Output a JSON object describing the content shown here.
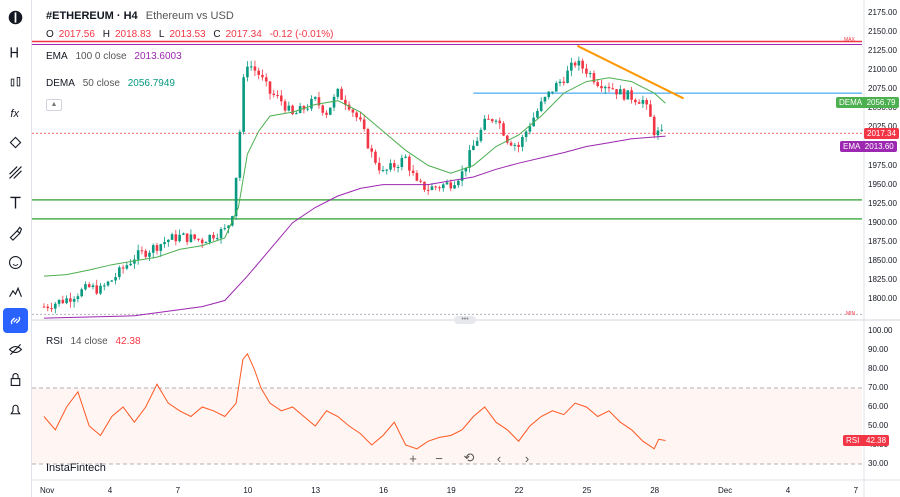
{
  "symbol": "#ETHEREUM · H4",
  "pair_desc": "Ethereum vs USD",
  "ohlc": {
    "o_label": "O",
    "o": "2017.56",
    "h_label": "H",
    "h": "2018.83",
    "l_label": "L",
    "l": "2013.53",
    "c_label": "C",
    "c": "2017.34",
    "change": "-0.12 (-0.01%)"
  },
  "ema": {
    "name": "EMA",
    "params": "100 0 close",
    "value": "2013.6003"
  },
  "dema": {
    "name": "DEMA",
    "params": "50 close",
    "value": "2056.7949"
  },
  "rsi": {
    "name": "RSI",
    "params": "14 close",
    "value": "42.38"
  },
  "price_axis": [
    "2175.00",
    "2150.00",
    "2125.00",
    "2100.00",
    "2075.00",
    "2050.00",
    "2025.00",
    "2000.00",
    "1975.00",
    "1950.00",
    "1925.00",
    "1900.00",
    "1875.00",
    "1850.00",
    "1825.00",
    "1800.00"
  ],
  "rsi_axis": [
    "100.00",
    "90.00",
    "80.00",
    "70.00",
    "60.00",
    "50.00",
    "40.00",
    "30.00"
  ],
  "x_labels": [
    "Nov",
    "4",
    "7",
    "10",
    "13",
    "16",
    "19",
    "22",
    "25",
    "28",
    "Dec",
    "4",
    "7"
  ],
  "tags": {
    "dema_label": "DEMA",
    "dema_value": "2056.79",
    "price": "2017.34",
    "ema_label": "EMA",
    "ema_value": "2013.60",
    "rsi_label": "RSI",
    "rsi_value": "42.38"
  },
  "max_label": "MAX",
  "min_label": "MIN",
  "watermark": "InstaFintech",
  "colors": {
    "up": "#089981",
    "down": "#f23645",
    "ema": "#9c27b0",
    "dema": "#4caf50",
    "rsi": "#ff5722",
    "trend": "#ff9800",
    "support": "#4caf50",
    "resistance": "#f23645",
    "hline_blue": "#2196f3",
    "accent": "#2962ff"
  },
  "sidebar_icons": [
    "logo-icon",
    "text-h-icon",
    "candles-icon",
    "function-icon",
    "pattern-icon",
    "lines-icon",
    "text-tool-icon",
    "brush-icon",
    "emoji-icon",
    "chart-type-icon",
    "link-icon",
    "hide-icon",
    "lock-icon",
    "alert-icon"
  ],
  "chart_data": {
    "type": "candlestick",
    "title": "#ETHEREUM · H4",
    "x_ticks": [
      "Nov",
      "4",
      "7",
      "10",
      "13",
      "16",
      "19",
      "22",
      "25",
      "28",
      "Dec",
      "4",
      "7"
    ],
    "ylim": [
      1780,
      2180
    ],
    "rsi_ylim": [
      25,
      100
    ],
    "price_levels": {
      "support_1": 1930,
      "support_2": 1905,
      "resistance": 2135,
      "blue_level": 2070,
      "last_price": 2017.34
    },
    "trendline": {
      "from": [
        24.6,
        2132
      ],
      "to": [
        29.3,
        2063
      ]
    },
    "close_path": [
      [
        1,
        1790
      ],
      [
        1.5,
        1795
      ],
      [
        2,
        1800
      ],
      [
        2.5,
        1808
      ],
      [
        3,
        1815
      ],
      [
        3.5,
        1812
      ],
      [
        4,
        1825
      ],
      [
        4.5,
        1840
      ],
      [
        5,
        1855
      ],
      [
        5.5,
        1862
      ],
      [
        6,
        1870
      ],
      [
        6.5,
        1878
      ],
      [
        7,
        1882
      ],
      [
        7.5,
        1880
      ],
      [
        8,
        1877
      ],
      [
        8.5,
        1885
      ],
      [
        9,
        1890
      ],
      [
        9.3,
        1905
      ],
      [
        9.6,
        1990
      ],
      [
        9.8,
        2080
      ],
      [
        10,
        2110
      ],
      [
        10.5,
        2095
      ],
      [
        11,
        2070
      ],
      [
        11.5,
        2060
      ],
      [
        12,
        2040
      ],
      [
        12.5,
        2050
      ],
      [
        13,
        2060
      ],
      [
        13.5,
        2045
      ],
      [
        14,
        2070
      ],
      [
        14.5,
        2055
      ],
      [
        15,
        2030
      ],
      [
        15.5,
        1990
      ],
      [
        16,
        1965
      ],
      [
        16.5,
        1975
      ],
      [
        17,
        1985
      ],
      [
        17.5,
        1950
      ],
      [
        18,
        1945
      ],
      [
        18.5,
        1948
      ],
      [
        19,
        1952
      ],
      [
        19.5,
        1965
      ],
      [
        20,
        2000
      ],
      [
        20.5,
        2030
      ],
      [
        21,
        2040
      ],
      [
        21.5,
        2010
      ],
      [
        22,
        2000
      ],
      [
        22.5,
        2030
      ],
      [
        23,
        2055
      ],
      [
        23.5,
        2075
      ],
      [
        24,
        2090
      ],
      [
        24.5,
        2110
      ],
      [
        25,
        2100
      ],
      [
        25.5,
        2085
      ],
      [
        26,
        2080
      ],
      [
        26.5,
        2070
      ],
      [
        27,
        2065
      ],
      [
        27.5,
        2060
      ],
      [
        27.8,
        2040
      ],
      [
        28,
        2020
      ],
      [
        28.3,
        2015
      ],
      [
        28.5,
        2017.34
      ]
    ],
    "ema_path": [
      [
        1,
        1775
      ],
      [
        5,
        1778
      ],
      [
        8,
        1790
      ],
      [
        9,
        1798
      ],
      [
        10,
        1830
      ],
      [
        11,
        1865
      ],
      [
        12,
        1900
      ],
      [
        13,
        1920
      ],
      [
        14,
        1935
      ],
      [
        15,
        1945
      ],
      [
        16,
        1950
      ],
      [
        17,
        1950
      ],
      [
        18,
        1950
      ],
      [
        19,
        1955
      ],
      [
        20,
        1960
      ],
      [
        21,
        1970
      ],
      [
        22,
        1978
      ],
      [
        23,
        1985
      ],
      [
        24,
        1992
      ],
      [
        25,
        2000
      ],
      [
        26,
        2005
      ],
      [
        27,
        2010
      ],
      [
        28.5,
        2013.6
      ]
    ],
    "dema_path": [
      [
        1,
        1830
      ],
      [
        2,
        1832
      ],
      [
        3,
        1838
      ],
      [
        4,
        1845
      ],
      [
        5,
        1850
      ],
      [
        6,
        1855
      ],
      [
        7,
        1865
      ],
      [
        8,
        1870
      ],
      [
        9,
        1880
      ],
      [
        9.6,
        1920
      ],
      [
        10,
        1990
      ],
      [
        10.5,
        2020
      ],
      [
        11,
        2040
      ],
      [
        12,
        2045
      ],
      [
        13,
        2055
      ],
      [
        14,
        2060
      ],
      [
        15,
        2045
      ],
      [
        16,
        2020
      ],
      [
        17,
        1995
      ],
      [
        18,
        1975
      ],
      [
        19,
        1965
      ],
      [
        20,
        1975
      ],
      [
        21,
        2000
      ],
      [
        22,
        2015
      ],
      [
        23,
        2040
      ],
      [
        24,
        2070
      ],
      [
        25,
        2085
      ],
      [
        26,
        2090
      ],
      [
        27,
        2085
      ],
      [
        28,
        2070
      ],
      [
        28.5,
        2056.79
      ]
    ],
    "rsi_path": [
      [
        1,
        55
      ],
      [
        1.5,
        48
      ],
      [
        2,
        60
      ],
      [
        2.5,
        68
      ],
      [
        3,
        50
      ],
      [
        3.5,
        45
      ],
      [
        4,
        55
      ],
      [
        4.5,
        60
      ],
      [
        5,
        52
      ],
      [
        5.5,
        60
      ],
      [
        6,
        72
      ],
      [
        6.5,
        62
      ],
      [
        7,
        58
      ],
      [
        7.5,
        55
      ],
      [
        8,
        60
      ],
      [
        8.5,
        58
      ],
      [
        9,
        55
      ],
      [
        9.5,
        62
      ],
      [
        9.8,
        85
      ],
      [
        10,
        88
      ],
      [
        10.3,
        80
      ],
      [
        10.6,
        70
      ],
      [
        11,
        62
      ],
      [
        11.5,
        58
      ],
      [
        12,
        60
      ],
      [
        12.5,
        55
      ],
      [
        13,
        50
      ],
      [
        13.5,
        58
      ],
      [
        14,
        55
      ],
      [
        14.5,
        50
      ],
      [
        15,
        46
      ],
      [
        15.5,
        40
      ],
      [
        16,
        45
      ],
      [
        16.5,
        52
      ],
      [
        17,
        40
      ],
      [
        17.5,
        38
      ],
      [
        18,
        42
      ],
      [
        18.5,
        44
      ],
      [
        19,
        45
      ],
      [
        19.5,
        48
      ],
      [
        20,
        55
      ],
      [
        20.5,
        60
      ],
      [
        21,
        52
      ],
      [
        21.5,
        48
      ],
      [
        22,
        42
      ],
      [
        22.5,
        50
      ],
      [
        23,
        55
      ],
      [
        23.5,
        58
      ],
      [
        24,
        56
      ],
      [
        24.5,
        62
      ],
      [
        25,
        60
      ],
      [
        25.5,
        55
      ],
      [
        26,
        58
      ],
      [
        26.5,
        52
      ],
      [
        27,
        48
      ],
      [
        27.5,
        42
      ],
      [
        28,
        38
      ],
      [
        28.2,
        43
      ],
      [
        28.5,
        42.38
      ]
    ],
    "rsi_levels": [
      70,
      30
    ]
  }
}
